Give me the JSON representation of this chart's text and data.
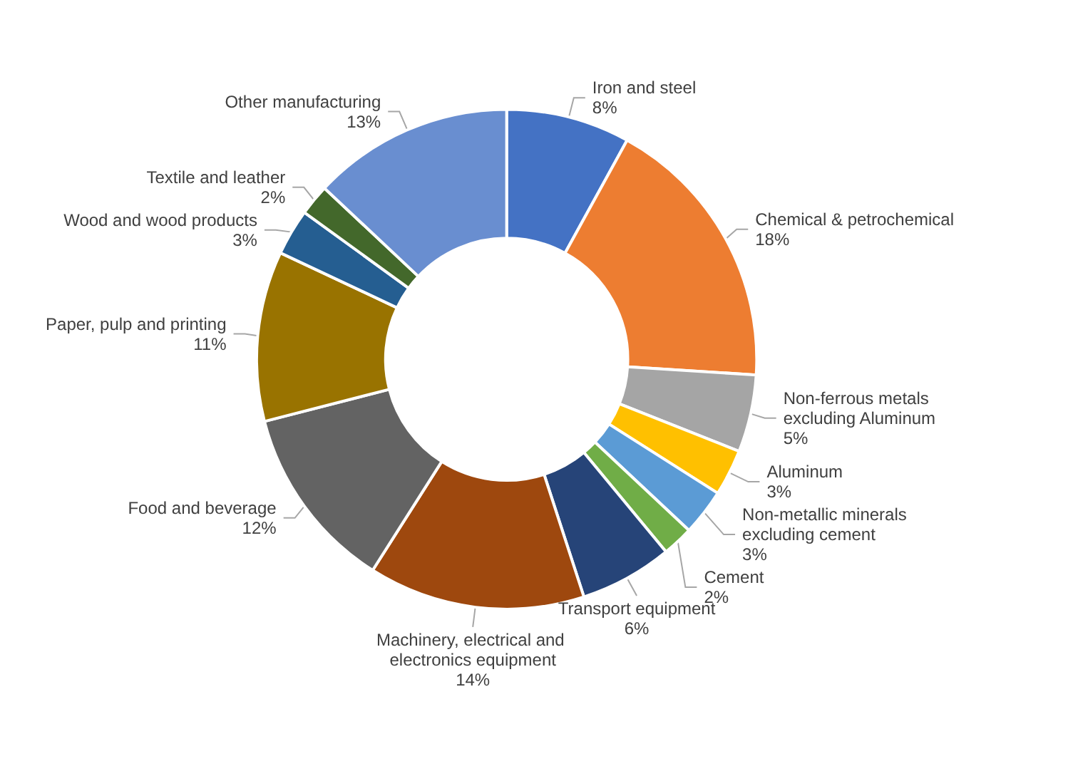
{
  "chart_data": {
    "type": "donut",
    "categories": [
      "Iron and steel",
      "Chemical & petrochemical",
      "Non-ferrous metals excluding Aluminum",
      "Aluminum",
      "Non-metallic minerals excluding cement",
      "Cement",
      "Transport equipment",
      "Machinery, electrical and electronics equipment",
      "Food and beverage",
      "Paper, pulp and printing",
      "Wood and wood products",
      "Textile and leather",
      "Other manufacturing"
    ],
    "values": [
      8,
      18,
      5,
      3,
      3,
      2,
      6,
      14,
      12,
      11,
      3,
      2,
      13
    ],
    "value_labels": [
      "8%",
      "18%",
      "5%",
      "3%",
      "3%",
      "2%",
      "6%",
      "14%",
      "12%",
      "11%",
      "3%",
      "2%",
      "13%"
    ],
    "colors": [
      "#4472c4",
      "#ed7d31",
      "#a5a5a5",
      "#ffc000",
      "#5b9bd5",
      "#70ad47",
      "#264478",
      "#9e480e",
      "#636363",
      "#997300",
      "#255e91",
      "#43682b",
      "#698ed0"
    ],
    "legend": false
  }
}
